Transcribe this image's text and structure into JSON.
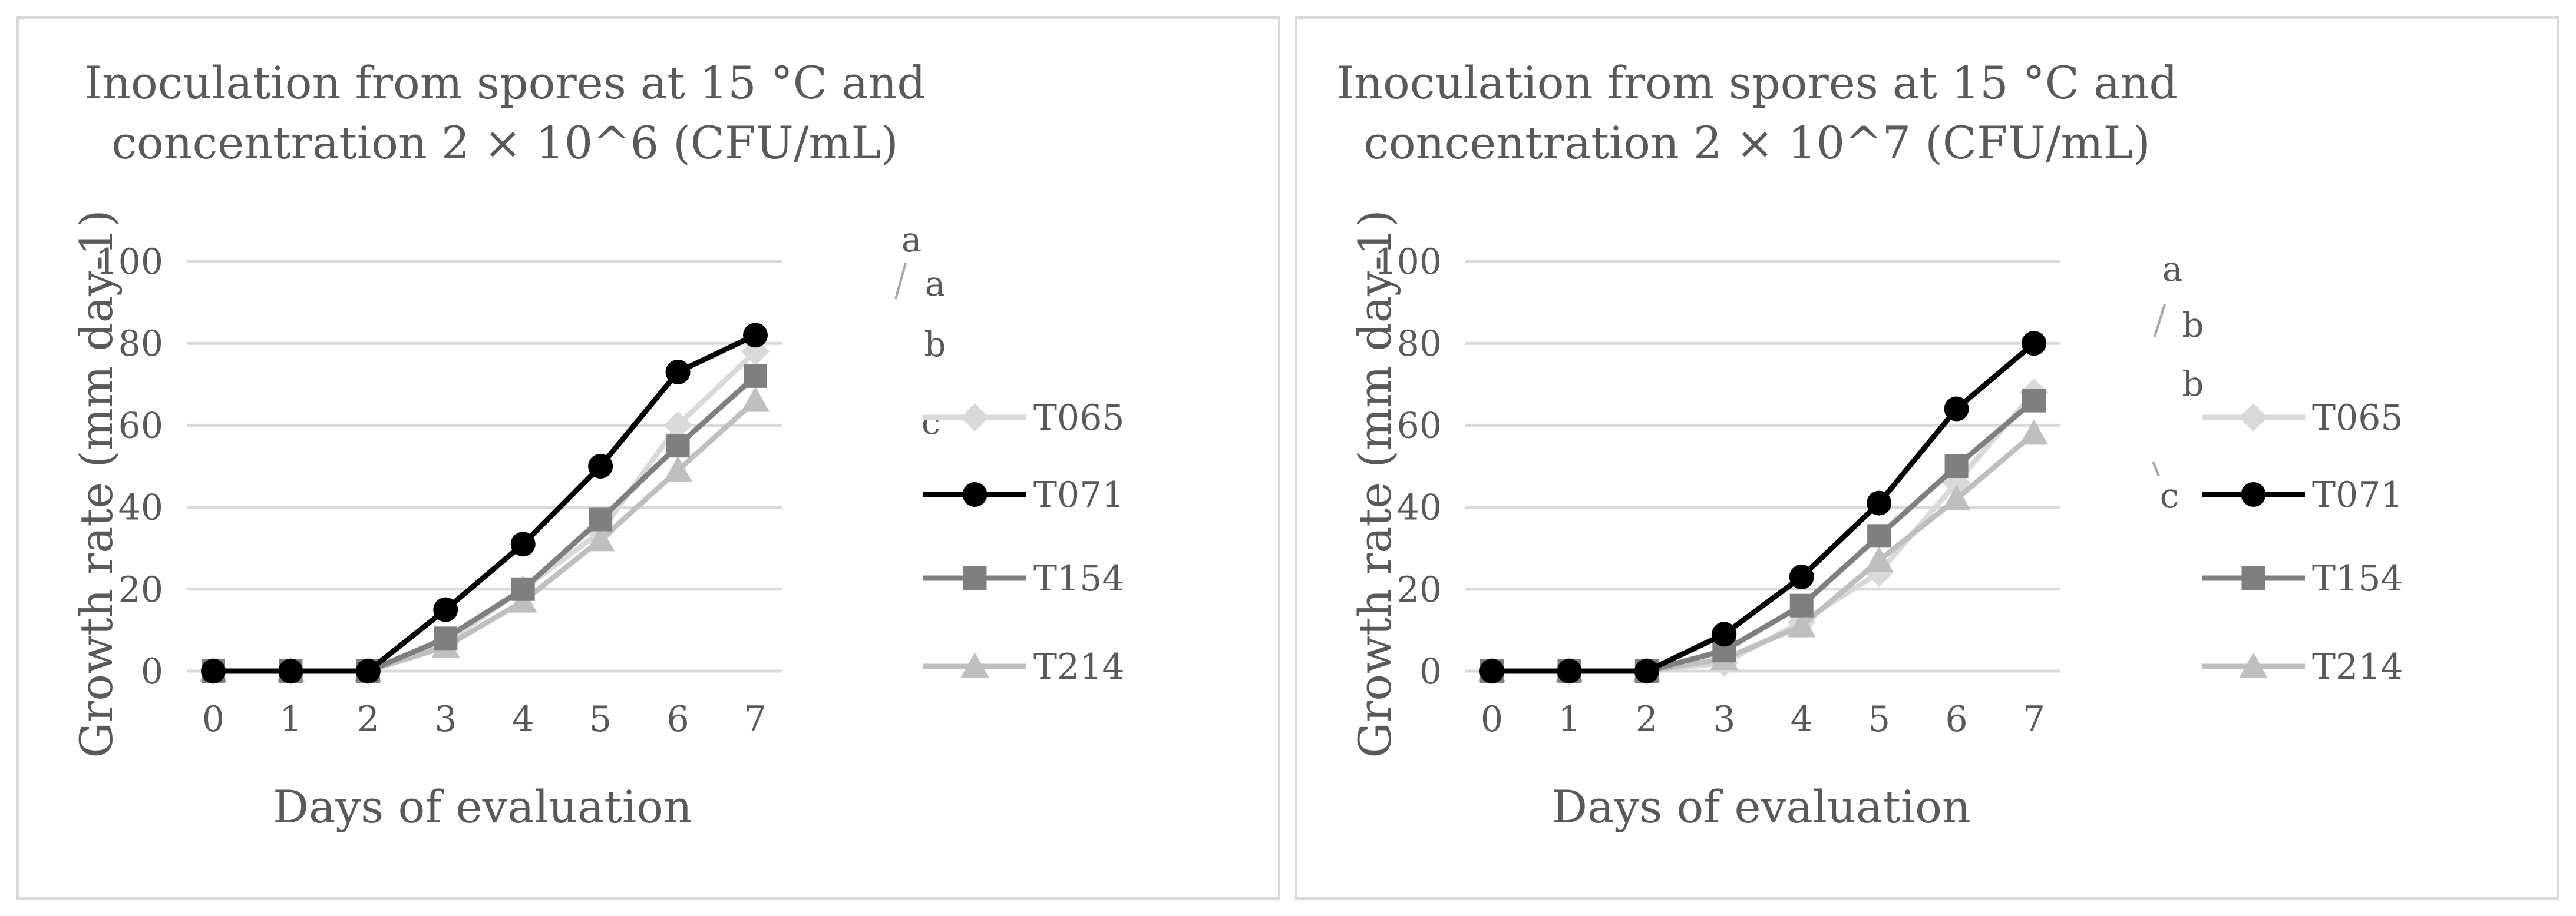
{
  "chart_data": [
    {
      "type": "line",
      "title_lines": [
        "Inoculation from spores at 15 °C and",
        "concentration 2 × 10^6 (CFU/mL)"
      ],
      "xlabel": "Days of evaluation",
      "ylabel": "Growth rate (mm day-1)",
      "x": [
        0,
        1,
        2,
        3,
        4,
        5,
        6,
        7
      ],
      "ylim": [
        0,
        100
      ],
      "yticks": [
        0,
        20,
        40,
        60,
        80,
        100
      ],
      "grid": true,
      "legend_position": "right",
      "series": [
        {
          "name": "T065",
          "color": "#d9d9d9",
          "marker": "diamond",
          "values": [
            0,
            0,
            0,
            7,
            20,
            34,
            60,
            78
          ]
        },
        {
          "name": "T071",
          "color": "#000000",
          "marker": "circle",
          "values": [
            0,
            0,
            0,
            15,
            31,
            50,
            73,
            82
          ]
        },
        {
          "name": "T154",
          "color": "#7f7f7f",
          "marker": "square",
          "values": [
            0,
            0,
            0,
            8,
            20,
            37,
            55,
            72
          ]
        },
        {
          "name": "T214",
          "color": "#bfbfbf",
          "marker": "triangle",
          "values": [
            0,
            0,
            0,
            6,
            17,
            32,
            49,
            66
          ]
        }
      ],
      "annotations": [
        {
          "text": "a",
          "series": "T071"
        },
        {
          "text": "a",
          "series": "T065"
        },
        {
          "text": "b",
          "series": "T154"
        },
        {
          "text": "c",
          "series": "T214"
        }
      ]
    },
    {
      "type": "line",
      "title_lines": [
        "Inoculation from spores at 15 °C and",
        "concentration 2 × 10^7 (CFU/mL)"
      ],
      "xlabel": "Days of evaluation",
      "ylabel": "Growth rate (mm day-1)",
      "x": [
        0,
        1,
        2,
        3,
        4,
        5,
        6,
        7
      ],
      "ylim": [
        0,
        100
      ],
      "yticks": [
        0,
        20,
        40,
        60,
        80,
        100
      ],
      "grid": true,
      "legend_position": "right",
      "series": [
        {
          "name": "T065",
          "color": "#d9d9d9",
          "marker": "diamond",
          "values": [
            0,
            0,
            0,
            2,
            12,
            24,
            46,
            68
          ]
        },
        {
          "name": "T071",
          "color": "#000000",
          "marker": "circle",
          "values": [
            0,
            0,
            0,
            9,
            23,
            41,
            64,
            80
          ]
        },
        {
          "name": "T154",
          "color": "#7f7f7f",
          "marker": "square",
          "values": [
            0,
            0,
            0,
            5,
            16,
            33,
            50,
            66
          ]
        },
        {
          "name": "T214",
          "color": "#bfbfbf",
          "marker": "triangle",
          "values": [
            0,
            0,
            0,
            3,
            11,
            27,
            42,
            58
          ]
        }
      ],
      "annotations": [
        {
          "text": "a",
          "series": "T071"
        },
        {
          "text": "b",
          "series": "T065"
        },
        {
          "text": "b",
          "series": "T154"
        },
        {
          "text": "c",
          "series": "T214"
        }
      ]
    }
  ]
}
